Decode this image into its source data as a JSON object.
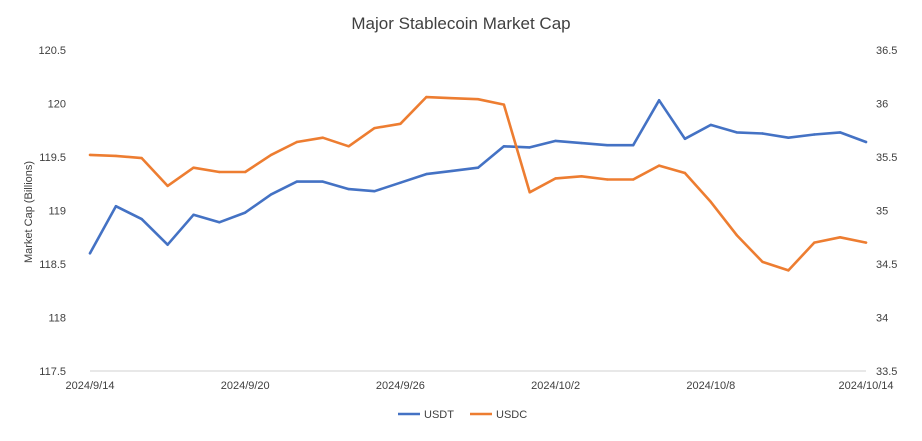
{
  "chart_data": {
    "type": "line",
    "title": "Major Stablecoin Market Cap",
    "xlabel": "",
    "ylabel": "Market Cap (Billions)",
    "y2label": "",
    "ylim": [
      117.5,
      120.5
    ],
    "y2lim": [
      33.5,
      36.5
    ],
    "grid": false,
    "legend_position": "bottom",
    "y_ticks": [
      "117.5",
      "118",
      "118.5",
      "119",
      "119.5",
      "120",
      "120.5"
    ],
    "y2_ticks": [
      "33.5",
      "34",
      "34.5",
      "35",
      "35.5",
      "36",
      "36.5"
    ],
    "x_ticks": [
      "2024/9/14",
      "2024/9/20",
      "2024/9/26",
      "2024/10/2",
      "2024/10/8",
      "2024/10/14"
    ],
    "x": [
      "2024/9/14",
      "2024/9/15",
      "2024/9/16",
      "2024/9/17",
      "2024/9/18",
      "2024/9/19",
      "2024/9/20",
      "2024/9/21",
      "2024/9/22",
      "2024/9/23",
      "2024/9/24",
      "2024/9/25",
      "2024/9/26",
      "2024/9/27",
      "2024/9/28",
      "2024/9/29",
      "2024/9/30",
      "2024/10/1",
      "2024/10/2",
      "2024/10/3",
      "2024/10/4",
      "2024/10/5",
      "2024/10/6",
      "2024/10/7",
      "2024/10/8",
      "2024/10/9",
      "2024/10/10",
      "2024/10/11",
      "2024/10/12",
      "2024/10/13",
      "2024/10/14"
    ],
    "series": [
      {
        "name": "USDT",
        "axis": "left",
        "color": "#4472C4",
        "values": [
          118.6,
          119.04,
          118.92,
          118.68,
          118.96,
          118.89,
          118.98,
          119.15,
          119.27,
          119.27,
          119.2,
          119.18,
          119.26,
          119.34,
          119.37,
          119.4,
          119.6,
          119.59,
          119.65,
          119.63,
          119.61,
          119.61,
          120.03,
          119.67,
          119.8,
          119.73,
          119.72,
          119.68,
          119.71,
          119.73,
          119.64
        ]
      },
      {
        "name": "USDC",
        "axis": "right",
        "color": "#ED7D31",
        "values": [
          35.52,
          35.51,
          35.49,
          35.23,
          35.4,
          35.36,
          35.36,
          35.52,
          35.64,
          35.68,
          35.6,
          35.77,
          35.81,
          36.06,
          36.05,
          36.04,
          35.99,
          35.17,
          35.3,
          35.32,
          35.29,
          35.29,
          35.42,
          35.35,
          35.08,
          34.77,
          34.52,
          34.44,
          34.7,
          34.75,
          34.7
        ]
      }
    ]
  }
}
